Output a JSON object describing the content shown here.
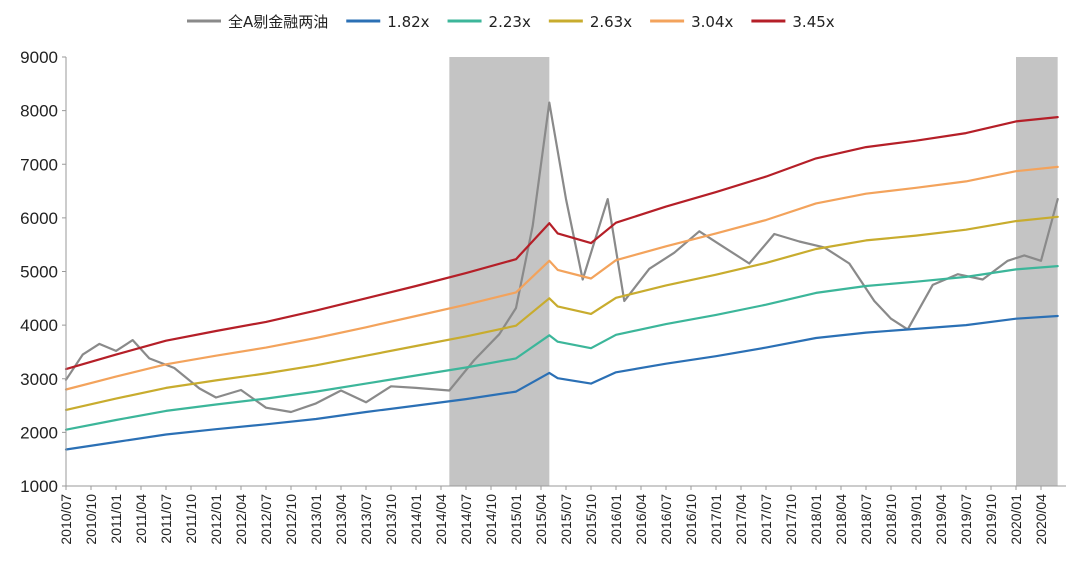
{
  "chart_data": {
    "type": "line",
    "title": "",
    "xlabel": "",
    "ylabel": "",
    "ylim": [
      1000,
      9000
    ],
    "y_ticks": [
      "1000",
      "2000",
      "3000",
      "4000",
      "5000",
      "6000",
      "7000",
      "8000",
      "9000"
    ],
    "x_range": [
      "2010/07",
      "2020/07"
    ],
    "x_tick_labels": [
      "2010/07",
      "2010/10",
      "2011/01",
      "2011/04",
      "2011/07",
      "2011/10",
      "2012/01",
      "2012/04",
      "2012/07",
      "2012/10",
      "2013/01",
      "2013/04",
      "2013/07",
      "2013/10",
      "2014/01",
      "2014/04",
      "2014/07",
      "2014/10",
      "2015/01",
      "2015/04",
      "2015/07",
      "2015/10",
      "2016/01",
      "2016/04",
      "2016/07",
      "2016/10",
      "2017/01",
      "2017/04",
      "2017/07",
      "2017/10",
      "2018/01",
      "2018/04",
      "2018/07",
      "2018/10",
      "2019/01",
      "2019/04",
      "2019/07",
      "2019/10",
      "2020/01",
      "2020/04"
    ],
    "grid": false,
    "legend_position": "top",
    "shaded_periods": [
      {
        "start": "2014/05",
        "end": "2015/05",
        "color": "#c4c4c4"
      },
      {
        "start": "2020/01",
        "end": "2020/06",
        "color": "#c4c4c4"
      }
    ],
    "series": [
      {
        "name": "全A剔金融两油",
        "color": "#8a8a8a",
        "x": [
          "2010/07",
          "2010/09",
          "2010/11",
          "2011/01",
          "2011/03",
          "2011/05",
          "2011/08",
          "2011/11",
          "2012/01",
          "2012/04",
          "2012/07",
          "2012/10",
          "2013/01",
          "2013/04",
          "2013/07",
          "2013/10",
          "2014/01",
          "2014/05",
          "2014/08",
          "2014/11",
          "2015/01",
          "2015/03",
          "2015/05",
          "2015/07",
          "2015/09",
          "2015/12",
          "2016/02",
          "2016/05",
          "2016/08",
          "2016/11",
          "2017/02",
          "2017/05",
          "2017/08",
          "2017/11",
          "2018/02",
          "2018/05",
          "2018/08",
          "2018/10",
          "2018/12",
          "2019/03",
          "2019/06",
          "2019/09",
          "2019/12",
          "2020/02",
          "2020/04",
          "2020/06"
        ],
        "values": [
          2980,
          3450,
          3650,
          3520,
          3720,
          3380,
          3200,
          2820,
          2650,
          2790,
          2460,
          2380,
          2540,
          2780,
          2560,
          2860,
          2830,
          2780,
          3350,
          3830,
          4320,
          5850,
          8150,
          6350,
          4850,
          6350,
          4450,
          5050,
          5350,
          5750,
          5450,
          5150,
          5700,
          5560,
          5450,
          5150,
          4450,
          4120,
          3920,
          4750,
          4950,
          4850,
          5200,
          5300,
          5200,
          6350
        ]
      },
      {
        "name": "1.82x",
        "color": "#2b70b5",
        "x": [
          "2010/07",
          "2011/01",
          "2011/07",
          "2012/01",
          "2012/07",
          "2013/01",
          "2013/07",
          "2014/01",
          "2014/07",
          "2015/01",
          "2015/05",
          "2015/06",
          "2015/10",
          "2016/01",
          "2016/07",
          "2017/01",
          "2017/07",
          "2018/01",
          "2018/07",
          "2019/01",
          "2019/07",
          "2020/01",
          "2020/06"
        ],
        "values": [
          1680,
          1820,
          1960,
          2060,
          2150,
          2250,
          2380,
          2500,
          2620,
          2760,
          3110,
          3010,
          2910,
          3120,
          3280,
          3420,
          3580,
          3760,
          3860,
          3930,
          4000,
          4120,
          4170
        ]
      },
      {
        "name": "2.23x",
        "color": "#3cb69a",
        "x": [
          "2010/07",
          "2011/01",
          "2011/07",
          "2012/01",
          "2012/07",
          "2013/01",
          "2013/07",
          "2014/01",
          "2014/07",
          "2015/01",
          "2015/05",
          "2015/06",
          "2015/10",
          "2016/01",
          "2016/07",
          "2017/01",
          "2017/07",
          "2018/01",
          "2018/07",
          "2019/01",
          "2019/07",
          "2020/01",
          "2020/06"
        ],
        "values": [
          2050,
          2230,
          2400,
          2520,
          2630,
          2760,
          2910,
          3060,
          3210,
          3380,
          3810,
          3690,
          3570,
          3820,
          4020,
          4190,
          4380,
          4600,
          4730,
          4810,
          4900,
          5040,
          5100
        ]
      },
      {
        "name": "2.63x",
        "color": "#c8ac2e",
        "x": [
          "2010/07",
          "2011/01",
          "2011/07",
          "2012/01",
          "2012/07",
          "2013/01",
          "2013/07",
          "2014/01",
          "2014/07",
          "2015/01",
          "2015/05",
          "2015/06",
          "2015/10",
          "2016/01",
          "2016/07",
          "2017/01",
          "2017/07",
          "2018/01",
          "2018/07",
          "2019/01",
          "2019/07",
          "2020/01",
          "2020/06"
        ],
        "values": [
          2420,
          2630,
          2830,
          2970,
          3100,
          3250,
          3430,
          3610,
          3790,
          3990,
          4500,
          4350,
          4210,
          4510,
          4740,
          4940,
          5160,
          5420,
          5580,
          5670,
          5780,
          5940,
          6020
        ]
      },
      {
        "name": "3.04x",
        "color": "#f3a35c",
        "x": [
          "2010/07",
          "2011/01",
          "2011/07",
          "2012/01",
          "2012/07",
          "2013/01",
          "2013/07",
          "2014/01",
          "2014/07",
          "2015/01",
          "2015/05",
          "2015/06",
          "2015/10",
          "2016/01",
          "2016/07",
          "2017/01",
          "2017/07",
          "2018/01",
          "2018/07",
          "2019/01",
          "2019/07",
          "2020/01",
          "2020/06"
        ],
        "values": [
          2800,
          3040,
          3270,
          3430,
          3580,
          3760,
          3960,
          4170,
          4380,
          4610,
          5200,
          5030,
          4870,
          5210,
          5470,
          5710,
          5960,
          6270,
          6450,
          6560,
          6680,
          6870,
          6950
        ]
      },
      {
        "name": "3.45x",
        "color": "#b51f28",
        "x": [
          "2010/07",
          "2011/01",
          "2011/07",
          "2012/01",
          "2012/07",
          "2013/01",
          "2013/07",
          "2014/01",
          "2014/07",
          "2015/01",
          "2015/05",
          "2015/06",
          "2015/10",
          "2016/01",
          "2016/07",
          "2017/01",
          "2017/07",
          "2018/01",
          "2018/07",
          "2019/01",
          "2019/07",
          "2020/01",
          "2020/06"
        ],
        "values": [
          3180,
          3450,
          3710,
          3890,
          4060,
          4270,
          4500,
          4730,
          4970,
          5230,
          5900,
          5710,
          5530,
          5910,
          6210,
          6480,
          6770,
          7110,
          7320,
          7440,
          7580,
          7800,
          7880
        ]
      }
    ]
  }
}
